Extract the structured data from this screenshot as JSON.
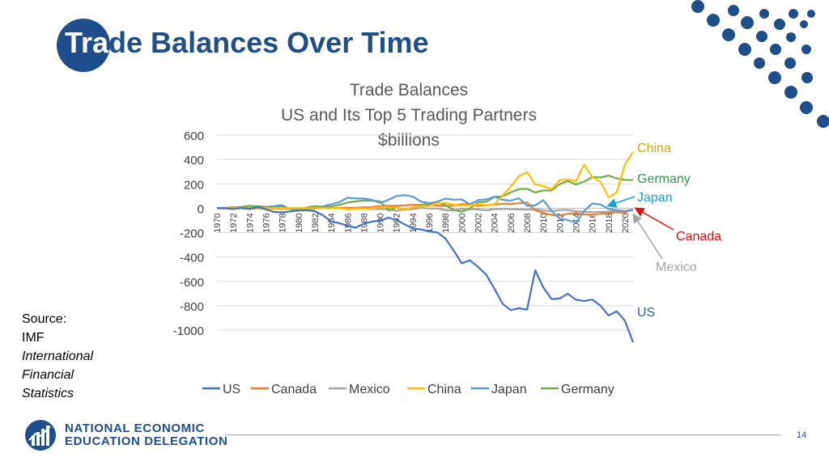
{
  "slide": {
    "title_prefix": "Tra",
    "title_rest": "de Balances Over Time",
    "source_label": "Source:",
    "source_org": "IMF",
    "source_pub": [
      "International",
      "Financial",
      "Statistics"
    ],
    "org_name_line1": "NATIONAL ECONOMIC",
    "org_name_line2": "EDUCATION DELEGATION",
    "page_number": "14"
  },
  "colors": {
    "title_blue": "#1f4e8c",
    "US": "#4472c4",
    "Canada": "#ed7d31",
    "Mexico": "#a5a5a5",
    "China": "#ffc000",
    "Japan": "#5b9bd5",
    "Germany": "#70ad47",
    "annotation_china": "#d9a800",
    "annotation_germany": "#2f9a47",
    "annotation_japan": "#1aa0d8",
    "annotation_canada": "#e01010",
    "annotation_mexico": "#a5a5a5",
    "annotation_us": "#2e5faa"
  },
  "chart_data": {
    "type": "line",
    "title_lines": [
      "Trade Balances",
      "US and Its Top 5 Trading Partners",
      "$billions"
    ],
    "ylim": [
      -1000,
      600
    ],
    "yticks": [
      600,
      400,
      200,
      0,
      -200,
      -400,
      -600,
      -800,
      -1000
    ],
    "xticks": [
      1970,
      1972,
      1974,
      1976,
      1978,
      1980,
      1982,
      1984,
      1986,
      1988,
      1990,
      1992,
      1994,
      1996,
      1998,
      2000,
      2002,
      2004,
      2006,
      2008,
      2010,
      2012,
      2014,
      2016,
      2018,
      2020
    ],
    "x": [
      1970,
      1971,
      1972,
      1973,
      1974,
      1975,
      1976,
      1977,
      1978,
      1979,
      1980,
      1981,
      1982,
      1983,
      1984,
      1985,
      1986,
      1987,
      1988,
      1989,
      1990,
      1991,
      1992,
      1993,
      1994,
      1995,
      1996,
      1997,
      1998,
      1999,
      2000,
      2001,
      2002,
      2003,
      2004,
      2005,
      2006,
      2007,
      2008,
      2009,
      2010,
      2011,
      2012,
      2013,
      2014,
      2015,
      2016,
      2017,
      2018,
      2019,
      2020,
      2021
    ],
    "series": [
      {
        "name": "US",
        "values": [
          2,
          -1,
          -6,
          1,
          -5,
          9,
          -9,
          -31,
          -34,
          -27,
          -19,
          -16,
          -25,
          -58,
          -110,
          -122,
          -145,
          -160,
          -126,
          -110,
          -102,
          -77,
          -97,
          -132,
          -166,
          -174,
          -191,
          -198,
          -248,
          -346,
          -452,
          -427,
          -482,
          -545,
          -660,
          -783,
          -837,
          -821,
          -832,
          -510,
          -650,
          -745,
          -741,
          -702,
          -751,
          -761,
          -750,
          -800,
          -880,
          -845,
          -922,
          -1100
        ]
      },
      {
        "name": "Canada",
        "values": [
          -2,
          0,
          -1,
          1,
          1,
          -2,
          -2,
          -3,
          -3,
          -4,
          -2,
          1,
          5,
          4,
          2,
          4,
          4,
          4,
          8,
          10,
          18,
          20,
          20,
          24,
          28,
          26,
          28,
          22,
          18,
          24,
          34,
          30,
          20,
          25,
          30,
          38,
          36,
          40,
          46,
          -18,
          -38,
          -55,
          -60,
          -45,
          -40,
          -52,
          -52,
          -46,
          -40,
          -34,
          -36,
          -10
        ]
      },
      {
        "name": "Mexico",
        "values": [
          0,
          0,
          0,
          0,
          0,
          0,
          0,
          0,
          0,
          0,
          0,
          -1,
          2,
          5,
          4,
          1,
          -3,
          -1,
          -3,
          -6,
          -7,
          -8,
          -22,
          -9,
          -8,
          3,
          -3,
          -3,
          -17,
          -18,
          -6,
          -9,
          -10,
          -18,
          -8,
          -6,
          -8,
          -10,
          -12,
          -8,
          -18,
          -24,
          -15,
          -14,
          -24,
          -30,
          -32,
          -30,
          -28,
          -20,
          -23,
          -18
        ]
      },
      {
        "name": "China",
        "values": [
          0,
          0,
          0,
          0,
          0,
          0,
          0,
          0,
          0,
          0,
          0,
          0,
          0,
          0,
          0,
          0,
          -10,
          -2,
          -3,
          -2,
          9,
          8,
          4,
          -12,
          8,
          17,
          17,
          40,
          44,
          29,
          24,
          23,
          30,
          25,
          33,
          102,
          178,
          262,
          297,
          196,
          182,
          155,
          231,
          236,
          222,
          359,
          255,
          216,
          89,
          130,
          359,
          463
        ]
      },
      {
        "name": "Japan",
        "values": [
          0,
          4,
          9,
          0,
          -6,
          -2,
          10,
          17,
          25,
          -9,
          -11,
          -9,
          -5,
          15,
          33,
          50,
          86,
          80,
          80,
          68,
          44,
          68,
          100,
          107,
          96,
          54,
          41,
          53,
          79,
          70,
          72,
          32,
          66,
          72,
          94,
          69,
          62,
          82,
          20,
          23,
          67,
          -22,
          -87,
          -97,
          -121,
          -23,
          39,
          31,
          -6,
          -17,
          -23,
          -10
        ]
      },
      {
        "name": "Germany",
        "values": [
          2,
          2,
          4,
          11,
          19,
          16,
          11,
          10,
          16,
          -8,
          -12,
          6,
          18,
          12,
          15,
          28,
          47,
          56,
          63,
          62,
          57,
          -17,
          4,
          -15,
          5,
          27,
          37,
          47,
          28,
          -15,
          -29,
          -2,
          48,
          53,
          93,
          98,
          129,
          157,
          160,
          129,
          145,
          146,
          198,
          224,
          195,
          218,
          255,
          253,
          268,
          245,
          233,
          230
        ]
      }
    ],
    "legend": [
      "US",
      "Canada",
      "Mexico",
      "China",
      "Japan",
      "Germany"
    ],
    "legend_position": "bottom",
    "annotations": [
      "China",
      "Germany",
      "Japan",
      "Canada",
      "Mexico",
      "US"
    ],
    "grid": true
  }
}
